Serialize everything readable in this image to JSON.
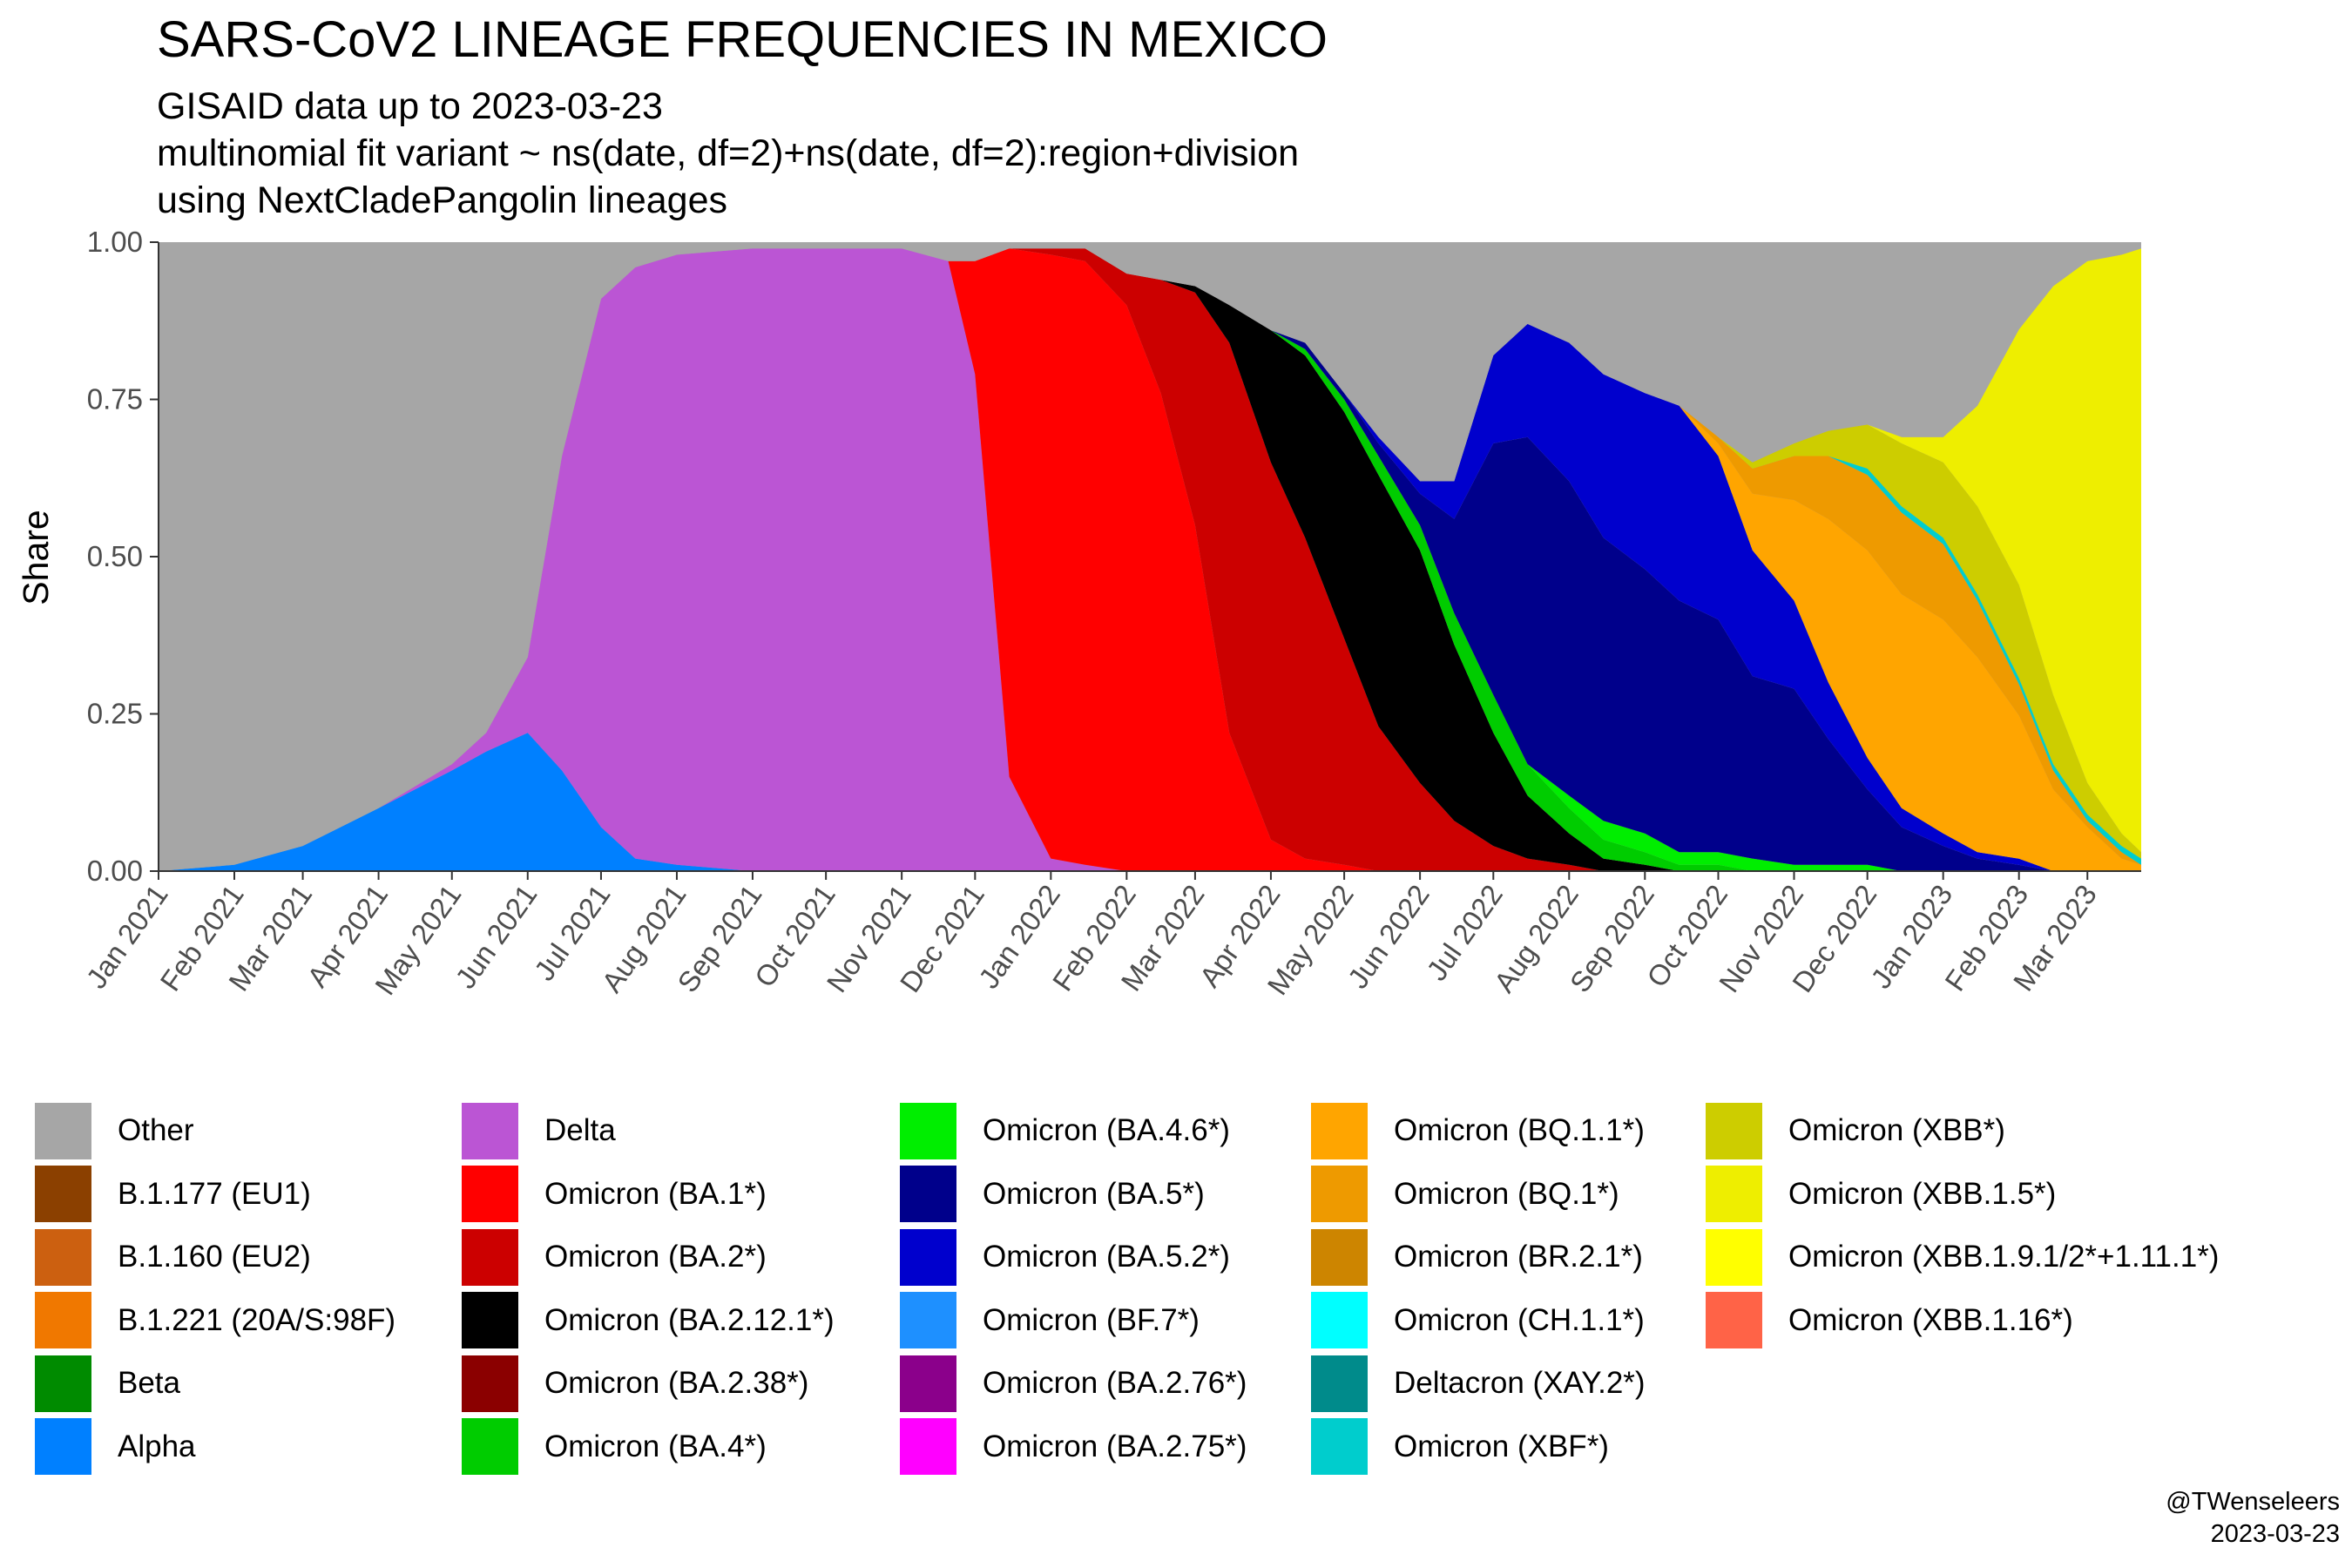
{
  "header": {
    "title": "SARS-CoV2 LINEAGE FREQUENCIES IN MEXICO",
    "subtitle1": "GISAID data up to 2023-03-23",
    "subtitle2": "multinomial fit variant ~ ns(date, df=2)+ns(date, df=2):region+division",
    "subtitle3": "using NextCladePangolin lineages"
  },
  "credit": {
    "handle": "@TWenseleers",
    "date": "2023-03-23"
  },
  "chart_data": {
    "type": "area",
    "stacked": true,
    "title": "SARS-CoV2 LINEAGE FREQUENCIES IN MEXICO",
    "ylabel": "Share",
    "xlabel": "",
    "ylim": [
      0,
      1
    ],
    "xlim": [
      "2021-01-01",
      "2023-03-23"
    ],
    "yticks": [
      "0.00",
      "0.25",
      "0.50",
      "0.75",
      "1.00"
    ],
    "xticks": [
      {
        "date": "2021-01-01",
        "label": "Jan 2021"
      },
      {
        "date": "2021-02-01",
        "label": "Feb 2021"
      },
      {
        "date": "2021-03-01",
        "label": "Mar 2021"
      },
      {
        "date": "2021-04-01",
        "label": "Apr 2021"
      },
      {
        "date": "2021-05-01",
        "label": "May 2021"
      },
      {
        "date": "2021-06-01",
        "label": "Jun 2021"
      },
      {
        "date": "2021-07-01",
        "label": "Jul 2021"
      },
      {
        "date": "2021-08-01",
        "label": "Aug 2021"
      },
      {
        "date": "2021-09-01",
        "label": "Sep 2021"
      },
      {
        "date": "2021-10-01",
        "label": "Oct 2021"
      },
      {
        "date": "2021-11-01",
        "label": "Nov 2021"
      },
      {
        "date": "2021-12-01",
        "label": "Dec 2021"
      },
      {
        "date": "2022-01-01",
        "label": "Jan 2022"
      },
      {
        "date": "2022-02-01",
        "label": "Feb 2022"
      },
      {
        "date": "2022-03-01",
        "label": "Mar 2022"
      },
      {
        "date": "2022-04-01",
        "label": "Apr 2022"
      },
      {
        "date": "2022-05-01",
        "label": "May 2022"
      },
      {
        "date": "2022-06-01",
        "label": "Jun 2022"
      },
      {
        "date": "2022-07-01",
        "label": "Jul 2022"
      },
      {
        "date": "2022-08-01",
        "label": "Aug 2022"
      },
      {
        "date": "2022-09-01",
        "label": "Sep 2022"
      },
      {
        "date": "2022-10-01",
        "label": "Oct 2022"
      },
      {
        "date": "2022-11-01",
        "label": "Nov 2022"
      },
      {
        "date": "2022-12-01",
        "label": "Dec 2022"
      },
      {
        "date": "2023-01-01",
        "label": "Jan 2023"
      },
      {
        "date": "2023-02-01",
        "label": "Feb 2023"
      },
      {
        "date": "2023-03-01",
        "label": "Mar 2023"
      }
    ],
    "legend_position": "bottom",
    "legend_columns": 5,
    "legend": [
      {
        "name": "Other",
        "color": "#a6a6a6"
      },
      {
        "name": "B.1.177 (EU1)",
        "color": "#8b4000"
      },
      {
        "name": "B.1.160 (EU2)",
        "color": "#cc6010"
      },
      {
        "name": "B.1.221 (20A/S:98F)",
        "color": "#f07800"
      },
      {
        "name": "Beta",
        "color": "#008b00"
      },
      {
        "name": "Alpha",
        "color": "#0080ff"
      },
      {
        "name": "Delta",
        "color": "#bb55d4"
      },
      {
        "name": "Omicron (BA.1*)",
        "color": "#ff0000"
      },
      {
        "name": "Omicron (BA.2*)",
        "color": "#cc0000"
      },
      {
        "name": "Omicron (BA.2.12.1*)",
        "color": "#000000"
      },
      {
        "name": "Omicron (BA.2.38*)",
        "color": "#8b0000"
      },
      {
        "name": "Omicron (BA.4*)",
        "color": "#00cc00"
      },
      {
        "name": "Omicron (BA.4.6*)",
        "color": "#00ee00"
      },
      {
        "name": "Omicron (BA.5*)",
        "color": "#00008b"
      },
      {
        "name": "Omicron (BA.5.2*)",
        "color": "#0000cd"
      },
      {
        "name": "Omicron (BF.7*)",
        "color": "#1e90ff"
      },
      {
        "name": "Omicron (BA.2.76*)",
        "color": "#8b008b"
      },
      {
        "name": "Omicron (BA.2.75*)",
        "color": "#ff00ff"
      },
      {
        "name": "Omicron (BQ.1.1*)",
        "color": "#ffa500"
      },
      {
        "name": "Omicron (BQ.1*)",
        "color": "#ee9a00"
      },
      {
        "name": "Omicron (BR.2.1*)",
        "color": "#cd8500"
      },
      {
        "name": "Omicron (CH.1.1*)",
        "color": "#00ffff"
      },
      {
        "name": "Deltacron (XAY.2*)",
        "color": "#008b8b"
      },
      {
        "name": "Omicron (XBF*)",
        "color": "#00cdcd"
      },
      {
        "name": "Omicron (XBB*)",
        "color": "#cdcd00"
      },
      {
        "name": "Omicron (XBB.1.5*)",
        "color": "#eeee00"
      },
      {
        "name": "Omicron (XBB.1.9.1/2*+1.11.1*)",
        "color": "#ffff00"
      },
      {
        "name": "Omicron (XBB.1.16*)",
        "color": "#ff6347"
      }
    ],
    "x": [
      "2021-01-01",
      "2021-02-01",
      "2021-03-01",
      "2021-04-01",
      "2021-05-01",
      "2021-05-15",
      "2021-06-01",
      "2021-06-15",
      "2021-07-01",
      "2021-07-15",
      "2021-08-01",
      "2021-09-01",
      "2021-10-01",
      "2021-11-01",
      "2021-11-20",
      "2021-12-01",
      "2021-12-15",
      "2022-01-01",
      "2022-01-15",
      "2022-02-01",
      "2022-02-15",
      "2022-03-01",
      "2022-03-15",
      "2022-04-01",
      "2022-04-15",
      "2022-05-01",
      "2022-05-15",
      "2022-06-01",
      "2022-06-15",
      "2022-07-01",
      "2022-07-15",
      "2022-08-01",
      "2022-08-15",
      "2022-09-01",
      "2022-09-15",
      "2022-10-01",
      "2022-10-15",
      "2022-11-01",
      "2022-11-15",
      "2022-12-01",
      "2022-12-15",
      "2023-01-01",
      "2023-01-15",
      "2023-02-01",
      "2023-02-15",
      "2023-03-01",
      "2023-03-15",
      "2023-03-23"
    ],
    "series": [
      {
        "name": "Alpha",
        "values": [
          0.0,
          0.01,
          0.04,
          0.1,
          0.16,
          0.19,
          0.22,
          0.16,
          0.07,
          0.02,
          0.01,
          0,
          0,
          0,
          0,
          0,
          0,
          0,
          0,
          0,
          0,
          0,
          0,
          0,
          0,
          0,
          0,
          0,
          0,
          0,
          0,
          0,
          0,
          0,
          0,
          0,
          0,
          0,
          0,
          0,
          0,
          0,
          0,
          0,
          0,
          0,
          0,
          0
        ]
      },
      {
        "name": "Delta",
        "values": [
          0,
          0,
          0,
          0,
          0.01,
          0.03,
          0.12,
          0.5,
          0.84,
          0.94,
          0.97,
          0.99,
          0.99,
          0.99,
          0.97,
          0.79,
          0.15,
          0.02,
          0.01,
          0,
          0,
          0,
          0,
          0,
          0,
          0,
          0,
          0,
          0,
          0,
          0,
          0,
          0,
          0,
          0,
          0,
          0,
          0,
          0,
          0,
          0,
          0,
          0,
          0,
          0,
          0,
          0,
          0
        ]
      },
      {
        "name": "Omicron (BA.1*)",
        "values": [
          0,
          0,
          0,
          0,
          0,
          0,
          0,
          0,
          0,
          0,
          0,
          0,
          0,
          0,
          0,
          0.18,
          0.84,
          0.96,
          0.96,
          0.9,
          0.76,
          0.55,
          0.22,
          0.05,
          0.02,
          0.01,
          0,
          0,
          0,
          0,
          0,
          0,
          0,
          0,
          0,
          0,
          0,
          0,
          0,
          0,
          0,
          0,
          0,
          0,
          0,
          0,
          0,
          0
        ]
      },
      {
        "name": "Omicron (BA.2*)",
        "values": [
          0,
          0,
          0,
          0,
          0,
          0,
          0,
          0,
          0,
          0,
          0,
          0,
          0,
          0,
          0,
          0,
          0,
          0.01,
          0.02,
          0.05,
          0.18,
          0.37,
          0.62,
          0.6,
          0.51,
          0.36,
          0.23,
          0.14,
          0.08,
          0.04,
          0.02,
          0.01,
          0,
          0,
          0,
          0,
          0,
          0,
          0,
          0,
          0,
          0,
          0,
          0,
          0,
          0,
          0,
          0
        ]
      },
      {
        "name": "Omicron (BA.2.12.1*)",
        "values": [
          0,
          0,
          0,
          0,
          0,
          0,
          0,
          0,
          0,
          0,
          0,
          0,
          0,
          0,
          0,
          0,
          0,
          0,
          0,
          0,
          0,
          0.01,
          0.06,
          0.21,
          0.29,
          0.36,
          0.4,
          0.37,
          0.28,
          0.18,
          0.1,
          0.05,
          0.02,
          0.01,
          0,
          0,
          0,
          0,
          0,
          0,
          0,
          0,
          0,
          0,
          0,
          0,
          0,
          0
        ]
      },
      {
        "name": "Omicron (BA.4*)",
        "values": [
          0,
          0,
          0,
          0,
          0,
          0,
          0,
          0,
          0,
          0,
          0,
          0,
          0,
          0,
          0,
          0,
          0,
          0,
          0,
          0,
          0,
          0,
          0,
          0,
          0.01,
          0.02,
          0.03,
          0.04,
          0.05,
          0.06,
          0.05,
          0.04,
          0.03,
          0.02,
          0.01,
          0.01,
          0,
          0,
          0,
          0,
          0,
          0,
          0,
          0,
          0,
          0,
          0,
          0
        ]
      },
      {
        "name": "Omicron (BA.4.6*)",
        "values": [
          0,
          0,
          0,
          0,
          0,
          0,
          0,
          0,
          0,
          0,
          0,
          0,
          0,
          0,
          0,
          0,
          0,
          0,
          0,
          0,
          0,
          0,
          0,
          0,
          0,
          0,
          0,
          0,
          0,
          0,
          0,
          0.02,
          0.03,
          0.03,
          0.02,
          0.02,
          0.02,
          0.01,
          0.01,
          0.01,
          0,
          0,
          0,
          0,
          0,
          0,
          0,
          0
        ]
      },
      {
        "name": "Omicron (BA.5*)",
        "values": [
          0,
          0,
          0,
          0,
          0,
          0,
          0,
          0,
          0,
          0,
          0,
          0,
          0,
          0,
          0,
          0,
          0,
          0,
          0,
          0,
          0,
          0,
          0,
          0,
          0.01,
          0.01,
          0.02,
          0.05,
          0.15,
          0.4,
          0.52,
          0.5,
          0.45,
          0.42,
          0.4,
          0.37,
          0.29,
          0.28,
          0.2,
          0.12,
          0.07,
          0.04,
          0.02,
          0.01,
          0,
          0,
          0,
          0
        ]
      },
      {
        "name": "Omicron (BA.5.2*)",
        "values": [
          0,
          0,
          0,
          0,
          0,
          0,
          0,
          0,
          0,
          0,
          0,
          0,
          0,
          0,
          0,
          0,
          0,
          0,
          0,
          0,
          0,
          0,
          0,
          0,
          0,
          0,
          0.01,
          0.02,
          0.06,
          0.14,
          0.18,
          0.22,
          0.26,
          0.28,
          0.31,
          0.26,
          0.2,
          0.14,
          0.09,
          0.05,
          0.03,
          0.02,
          0.01,
          0.01,
          0,
          0,
          0,
          0
        ]
      },
      {
        "name": "Omicron (BQ.1.1*)",
        "values": [
          0,
          0,
          0,
          0,
          0,
          0,
          0,
          0,
          0,
          0,
          0,
          0,
          0,
          0,
          0,
          0,
          0,
          0,
          0,
          0,
          0,
          0,
          0,
          0,
          0,
          0,
          0,
          0,
          0,
          0,
          0,
          0,
          0,
          0,
          0,
          0.02,
          0.09,
          0.16,
          0.26,
          0.33,
          0.34,
          0.34,
          0.31,
          0.23,
          0.13,
          0.07,
          0.02,
          0.01
        ]
      },
      {
        "name": "Omicron (BQ.1*)",
        "values": [
          0,
          0,
          0,
          0,
          0,
          0,
          0,
          0,
          0,
          0,
          0,
          0,
          0,
          0,
          0,
          0,
          0,
          0,
          0,
          0,
          0,
          0,
          0,
          0,
          0,
          0,
          0,
          0,
          0,
          0,
          0,
          0,
          0,
          0,
          0,
          0.01,
          0.04,
          0.07,
          0.1,
          0.12,
          0.13,
          0.12,
          0.09,
          0.05,
          0.03,
          0.01,
          0.01,
          0
        ]
      },
      {
        "name": "Omicron (XBF*)",
        "values": [
          0,
          0,
          0,
          0,
          0,
          0,
          0,
          0,
          0,
          0,
          0,
          0,
          0,
          0,
          0,
          0,
          0,
          0,
          0,
          0,
          0,
          0,
          0,
          0,
          0,
          0,
          0,
          0,
          0,
          0,
          0,
          0,
          0,
          0,
          0,
          0,
          0,
          0,
          0,
          0.01,
          0.01,
          0.01,
          0.01,
          0.01,
          0.01,
          0.01,
          0.01,
          0.01
        ]
      },
      {
        "name": "Omicron (XBB*)",
        "values": [
          0,
          0,
          0,
          0,
          0,
          0,
          0,
          0,
          0,
          0,
          0,
          0,
          0,
          0,
          0,
          0,
          0,
          0,
          0,
          0,
          0,
          0,
          0,
          0,
          0,
          0,
          0,
          0,
          0,
          0,
          0,
          0,
          0,
          0,
          0,
          0,
          0.01,
          0.02,
          0.04,
          0.07,
          0.1,
          0.12,
          0.14,
          0.15,
          0.11,
          0.05,
          0.02,
          0.01
        ]
      },
      {
        "name": "Omicron (XBB.1.5*)",
        "values": [
          0,
          0,
          0,
          0,
          0,
          0,
          0,
          0,
          0,
          0,
          0,
          0,
          0,
          0,
          0,
          0,
          0,
          0,
          0,
          0,
          0,
          0,
          0,
          0,
          0,
          0,
          0,
          0,
          0,
          0,
          0,
          0,
          0,
          0,
          0,
          0,
          0,
          0,
          0,
          0,
          0.01,
          0.04,
          0.16,
          0.41,
          0.65,
          0.83,
          0.92,
          0.96
        ]
      },
      {
        "name": "Other",
        "values": [
          1.0,
          0.99,
          0.96,
          0.9,
          0.83,
          0.78,
          0.66,
          0.34,
          0.09,
          0.04,
          0.02,
          0.01,
          0.01,
          0.01,
          0.03,
          0.03,
          0.01,
          0.01,
          0.01,
          0.05,
          0.06,
          0.07,
          0.1,
          0.14,
          0.16,
          0.24,
          0.31,
          0.38,
          0.38,
          0.18,
          0.13,
          0.16,
          0.21,
          0.24,
          0.26,
          0.31,
          0.35,
          0.32,
          0.3,
          0.29,
          0.31,
          0.31,
          0.26,
          0.14,
          0.07,
          0.03,
          0.02,
          0.01
        ]
      }
    ]
  }
}
